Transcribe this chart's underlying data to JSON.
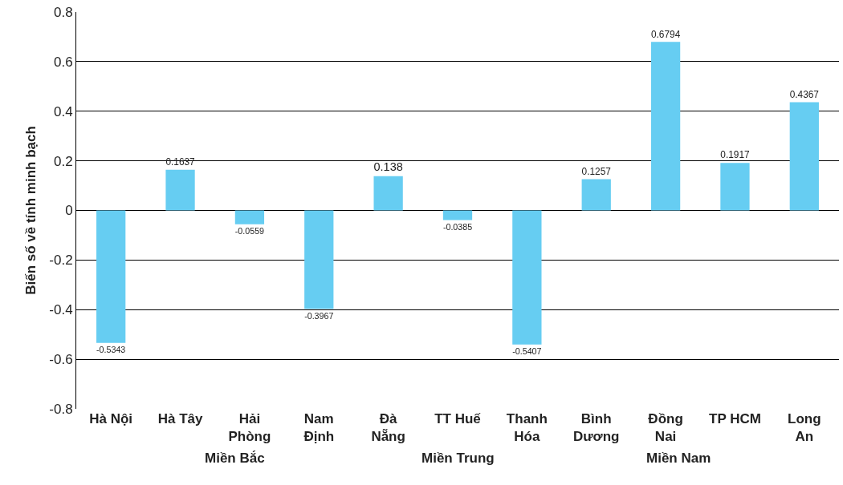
{
  "chart_data": {
    "type": "bar",
    "ylabel": "Biến số về tính minh bạch",
    "categories": [
      "Hà Nội",
      "Hà Tây",
      "Hải\nPhòng",
      "Nam\nĐịnh",
      "Đà\nNẵng",
      "TT Huế",
      "Thanh\nHóa",
      "Bình\nDương",
      "Đồng\nNai",
      "TP HCM",
      "Long\nAn"
    ],
    "values": [
      -0.5343,
      0.1637,
      -0.0559,
      -0.3967,
      0.138,
      -0.0385,
      -0.5407,
      0.1257,
      0.6794,
      0.1917,
      0.4367
    ],
    "color": "#66cdf2",
    "data_labels": true,
    "ylim": [
      -0.8,
      0.8
    ],
    "yticks": [
      -0.8,
      -0.6,
      -0.4,
      -0.2,
      0,
      0.2,
      0.4,
      0.6,
      0.8
    ],
    "grid": "y",
    "annotations": [
      "Miền Bắc",
      "Miền Trung",
      "Miền Nam"
    ]
  }
}
